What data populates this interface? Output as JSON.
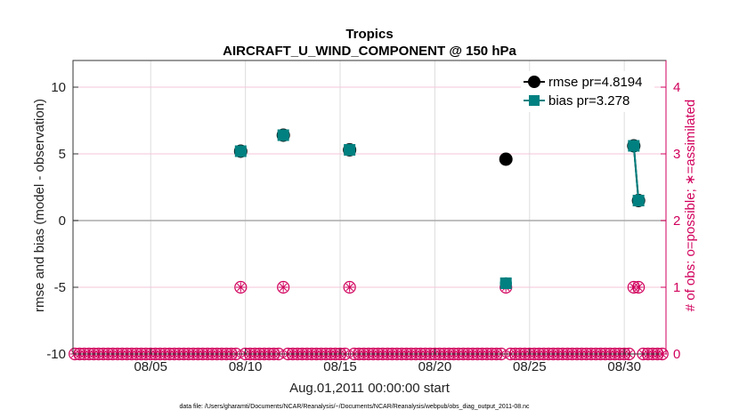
{
  "chart_data": {
    "type": "scatter",
    "title": "Tropics",
    "subtitle": "AIRCRAFT_U_WIND_COMPONENT @ 150 hPa",
    "xlabel": "Aug.01,2011 00:00:00 start",
    "ylabel": "rmse and bias (model - observation)",
    "ylabel_right": "# of obs: o=possible; ∗=assimilated",
    "footnote": "data file: /Users/gharamti/Documents/NCAR/Reanalysis/~/Documents/NCAR/Reanalysis/webpub/obs_diag_output_2011-08.nc",
    "xlim": [
      0.9,
      32.2
    ],
    "ylim": [
      -10,
      12
    ],
    "ylim_right": [
      0,
      4.4
    ],
    "x_ticks": [
      {
        "value": 5,
        "label": "08/05"
      },
      {
        "value": 10,
        "label": "08/10"
      },
      {
        "value": 15,
        "label": "08/15"
      },
      {
        "value": 20,
        "label": "08/20"
      },
      {
        "value": 25,
        "label": "08/25"
      },
      {
        "value": 30,
        "label": "08/30"
      }
    ],
    "y_ticks": [
      {
        "value": -10,
        "label": "-10"
      },
      {
        "value": -5,
        "label": "-5"
      },
      {
        "value": 0,
        "label": "0"
      },
      {
        "value": 5,
        "label": "5"
      },
      {
        "value": 10,
        "label": "10"
      }
    ],
    "y_ticks_right": [
      {
        "value": 0,
        "label": "0"
      },
      {
        "value": 1,
        "label": "1"
      },
      {
        "value": 2,
        "label": "2"
      },
      {
        "value": 3,
        "label": "3"
      },
      {
        "value": 4,
        "label": "4"
      }
    ],
    "series": [
      {
        "name": "rmse",
        "legend_label": "rmse pr=4.8194",
        "color": "#000000",
        "marker": "circle",
        "points": [
          [
            9.75,
            5.2
          ],
          [
            12.0,
            6.4
          ],
          [
            15.5,
            5.3
          ],
          [
            23.75,
            4.6
          ],
          [
            30.5,
            5.6
          ],
          [
            30.75,
            1.5
          ]
        ]
      },
      {
        "name": "bias",
        "legend_label": "bias pr=3.278",
        "color": "#008080",
        "marker": "square",
        "points": [
          [
            9.75,
            5.2
          ],
          [
            12.0,
            6.4
          ],
          [
            15.5,
            5.3
          ],
          [
            23.75,
            -4.7
          ],
          [
            30.5,
            5.6
          ],
          [
            30.75,
            1.5
          ]
        ]
      }
    ],
    "obs_counts": {
      "color": "#d1005c",
      "x_start": 1.0,
      "x_end": 32.0,
      "x_step": 0.25,
      "nonzero": [
        [
          9.75,
          1
        ],
        [
          12.0,
          1
        ],
        [
          15.5,
          1
        ],
        [
          23.75,
          1
        ],
        [
          30.5,
          1
        ],
        [
          30.75,
          1
        ]
      ]
    },
    "grid": true,
    "legend_position": "top-right"
  }
}
